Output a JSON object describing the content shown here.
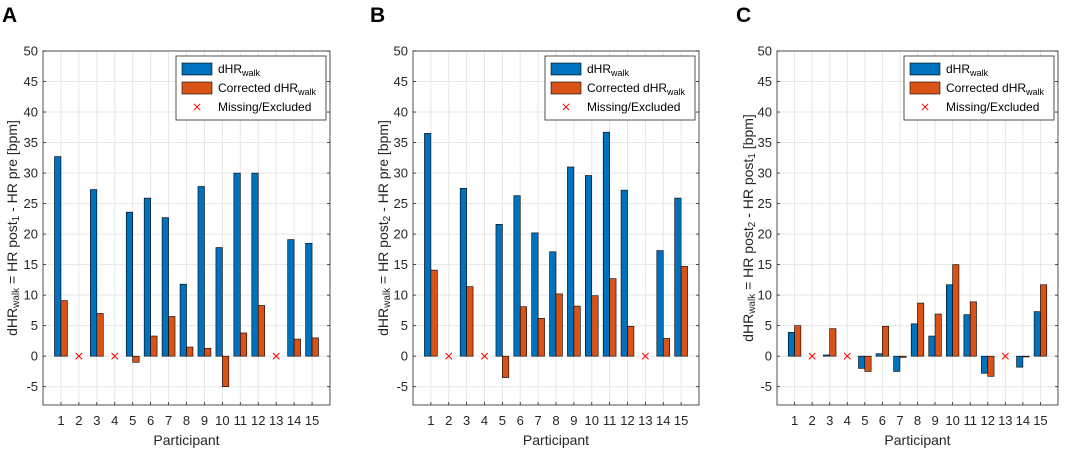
{
  "legend": {
    "series1": {
      "base": "dHR",
      "sub": "walk"
    },
    "series2": {
      "base": "Corrected dHR",
      "sub": "walk"
    },
    "missing": "Missing/Excluded"
  },
  "colors": {
    "series1": "#0072BD",
    "series2": "#D95319",
    "missing": "#FF0000",
    "grid": "#e6e6e6",
    "axis": "#262626"
  },
  "chart_data": [
    {
      "panel": "A",
      "type": "bar",
      "xlabel": "Participant",
      "ylabel": [
        "dHR",
        "walk",
        " = HR post",
        "1",
        " - HR pre [bpm]"
      ],
      "ylim": [
        -8,
        50
      ],
      "yticks": [
        -5,
        0,
        5,
        10,
        15,
        20,
        25,
        30,
        35,
        40,
        45,
        50
      ],
      "categories": [
        "1",
        "2",
        "3",
        "4",
        "5",
        "6",
        "7",
        "8",
        "9",
        "10",
        "11",
        "12",
        "13",
        "14",
        "15"
      ],
      "series": [
        {
          "name": "dHR walk",
          "values": [
            32.7,
            null,
            27.3,
            null,
            23.6,
            25.9,
            22.7,
            11.8,
            27.8,
            17.8,
            30.0,
            30.0,
            null,
            19.1,
            18.5
          ]
        },
        {
          "name": "Corrected dHR walk",
          "values": [
            9.1,
            null,
            7.0,
            null,
            -1.0,
            3.3,
            6.5,
            1.5,
            1.3,
            -5.0,
            3.8,
            8.3,
            null,
            2.8,
            3.0
          ]
        }
      ],
      "missing": [
        "2",
        "4",
        "13"
      ]
    },
    {
      "panel": "B",
      "type": "bar",
      "xlabel": "Participant",
      "ylabel": [
        "dHR",
        "walk",
        " = HR post",
        "2",
        " - HR pre [bpm]"
      ],
      "ylim": [
        -8,
        50
      ],
      "yticks": [
        -5,
        0,
        5,
        10,
        15,
        20,
        25,
        30,
        35,
        40,
        45,
        50
      ],
      "categories": [
        "1",
        "2",
        "3",
        "4",
        "5",
        "6",
        "7",
        "8",
        "9",
        "10",
        "11",
        "12",
        "13",
        "14",
        "15"
      ],
      "series": [
        {
          "name": "dHR walk",
          "values": [
            36.5,
            null,
            27.5,
            null,
            21.6,
            26.3,
            20.2,
            17.1,
            31.0,
            29.6,
            36.7,
            27.2,
            null,
            17.3,
            25.9
          ]
        },
        {
          "name": "Corrected dHR walk",
          "values": [
            14.1,
            null,
            11.4,
            null,
            -3.5,
            8.1,
            6.2,
            10.2,
            8.2,
            9.9,
            12.7,
            4.9,
            null,
            2.9,
            14.7
          ]
        }
      ],
      "missing": [
        "2",
        "4",
        "13"
      ]
    },
    {
      "panel": "C",
      "type": "bar",
      "xlabel": "Participant",
      "ylabel": [
        "dHR",
        "walk",
        " = HR post",
        "2",
        " - HR post",
        "1",
        " [bpm]"
      ],
      "ylim": [
        -8,
        50
      ],
      "yticks": [
        -5,
        0,
        5,
        10,
        15,
        20,
        25,
        30,
        35,
        40,
        45,
        50
      ],
      "categories": [
        "1",
        "2",
        "3",
        "4",
        "5",
        "6",
        "7",
        "8",
        "9",
        "10",
        "11",
        "12",
        "13",
        "14",
        "15"
      ],
      "series": [
        {
          "name": "dHR walk",
          "values": [
            3.9,
            null,
            0.2,
            null,
            -2.0,
            0.4,
            -2.5,
            5.3,
            3.3,
            11.7,
            6.8,
            -2.8,
            null,
            -1.8,
            7.3
          ]
        },
        {
          "name": "Corrected dHR walk",
          "values": [
            5.0,
            null,
            4.5,
            null,
            -2.5,
            4.9,
            -0.2,
            8.7,
            6.9,
            15.0,
            8.9,
            -3.3,
            null,
            0.0,
            11.7
          ]
        }
      ],
      "missing": [
        "2",
        "4",
        "13"
      ]
    }
  ]
}
